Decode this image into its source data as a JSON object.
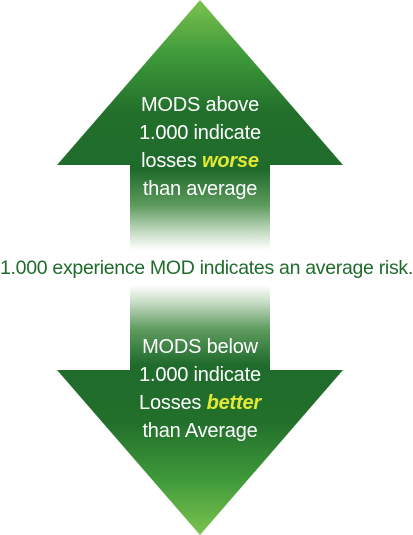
{
  "diagram": {
    "up_arrow": {
      "line1": "MODS above",
      "line2": "1.000 indicate",
      "line3_prefix": "losses ",
      "line3_emphasis": "worse",
      "line4": "than average"
    },
    "middle_statement": "1.000 experience MOD indicates an average risk.",
    "down_arrow": {
      "line1": "MODS below",
      "line2": "1.000 indicate",
      "line3_prefix": "Losses ",
      "line3_emphasis": "better",
      "line4": "than Average"
    },
    "colors": {
      "arrow_dark_green": "#1f6b2c",
      "arrow_mid_green": "#3f9a3a",
      "arrow_light_green": "#8bc85a",
      "emphasis_yellow": "#e3e834",
      "statement_text": "#1f6b2c"
    }
  }
}
